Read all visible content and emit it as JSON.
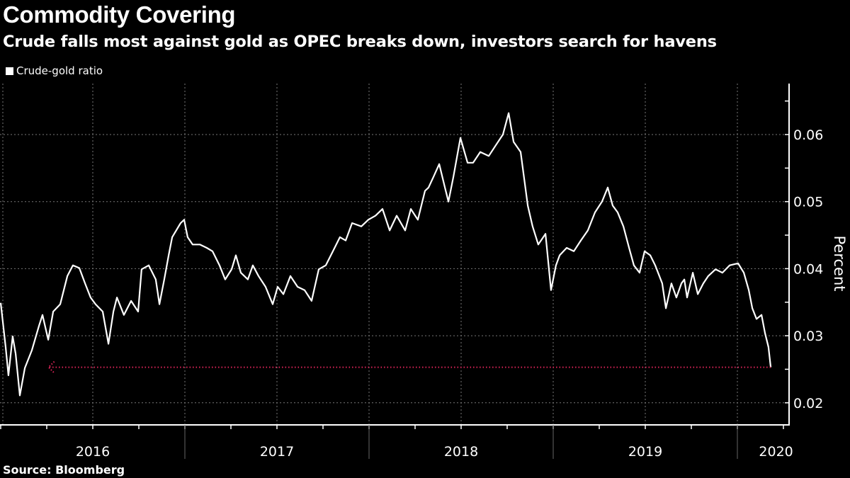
{
  "chart_data": {
    "type": "line",
    "title": "Commodity Covering",
    "subtitle": "Crude falls most against gold as OPEC breaks down, investors search for havens",
    "ylabel": "Percent",
    "xlabel": "",
    "ylim": [
      0.012,
      0.068
    ],
    "yticks": [
      "0.02",
      "0.03",
      "0.04",
      "0.05",
      "0.06"
    ],
    "ytick_values": [
      0.02,
      0.03,
      0.04,
      0.05,
      0.06
    ],
    "xlim": [
      2016.0,
      2020.43
    ],
    "xtick_labels": [
      {
        "label": "2016",
        "center": 2016.5
      },
      {
        "label": "2017",
        "center": 2017.5
      },
      {
        "label": "2018",
        "center": 2018.5
      },
      {
        "label": "2019",
        "center": 2019.5
      },
      {
        "label": "2020",
        "center": 2020.21
      }
    ],
    "grid": true,
    "legend": {
      "position": "top-left",
      "entries": [
        "Crude-gold ratio"
      ]
    },
    "series": [
      {
        "name": "Crude-gold ratio",
        "color": "#ffffff",
        "x": [
          2016.0,
          2016.027,
          2016.042,
          2016.065,
          2016.081,
          2016.104,
          2016.131,
          2016.169,
          2016.208,
          2016.227,
          2016.258,
          2016.285,
          2016.323,
          2016.362,
          2016.392,
          2016.427,
          2016.458,
          2016.488,
          2016.515,
          2016.554,
          2016.585,
          2016.612,
          2016.631,
          2016.669,
          2016.708,
          2016.746,
          2016.765,
          2016.804,
          2016.842,
          2016.862,
          2016.888,
          2016.912,
          2016.931,
          2016.977,
          2016.996,
          2017.015,
          2017.042,
          2017.081,
          2017.119,
          2017.15,
          2017.188,
          2017.219,
          2017.254,
          2017.277,
          2017.304,
          2017.342,
          2017.369,
          2017.4,
          2017.438,
          2017.477,
          2017.504,
          2017.535,
          2017.573,
          2017.612,
          2017.65,
          2017.688,
          2017.727,
          2017.765,
          2017.804,
          2017.842,
          2017.873,
          2017.908,
          2017.958,
          2017.996,
          2018.035,
          2018.073,
          2018.112,
          2018.15,
          2018.196,
          2018.227,
          2018.265,
          2018.304,
          2018.323,
          2018.35,
          2018.381,
          2018.412,
          2018.431,
          2018.458,
          2018.496,
          2018.535,
          2018.565,
          2018.604,
          2018.65,
          2018.688,
          2018.727,
          2018.758,
          2018.785,
          2018.823,
          2018.862,
          2018.888,
          2018.919,
          2018.958,
          2018.988,
          2019.015,
          2019.035,
          2019.073,
          2019.112,
          2019.15,
          2019.188,
          2019.227,
          2019.265,
          2019.296,
          2019.323,
          2019.35,
          2019.381,
          2019.412,
          2019.438,
          2019.469,
          2019.496,
          2019.527,
          2019.554,
          2019.592,
          2019.612,
          2019.642,
          2019.669,
          2019.696,
          2019.712,
          2019.727,
          2019.758,
          2019.785,
          2019.815,
          2019.842,
          2019.881,
          2019.919,
          2019.958,
          2020.004,
          2020.035,
          2020.062,
          2020.081,
          2020.104,
          2020.131,
          2020.15,
          2020.169,
          2020.181
        ],
        "y": [
          0.0349,
          0.0283,
          0.0241,
          0.0299,
          0.0273,
          0.0211,
          0.0252,
          0.0278,
          0.0315,
          0.0331,
          0.0294,
          0.0336,
          0.0347,
          0.0389,
          0.0405,
          0.0401,
          0.0378,
          0.0357,
          0.0347,
          0.0336,
          0.0288,
          0.0336,
          0.0357,
          0.0331,
          0.0352,
          0.0336,
          0.0399,
          0.0405,
          0.0384,
          0.0347,
          0.0384,
          0.042,
          0.0447,
          0.0468,
          0.0473,
          0.0447,
          0.0436,
          0.0436,
          0.0431,
          0.0426,
          0.0405,
          0.0384,
          0.0399,
          0.042,
          0.0394,
          0.0384,
          0.0405,
          0.0389,
          0.0373,
          0.0347,
          0.0373,
          0.0362,
          0.0389,
          0.0373,
          0.0368,
          0.0352,
          0.0399,
          0.0405,
          0.0426,
          0.0447,
          0.0442,
          0.0468,
          0.0463,
          0.0473,
          0.0479,
          0.0489,
          0.0457,
          0.0479,
          0.0457,
          0.0489,
          0.0473,
          0.0516,
          0.0521,
          0.0537,
          0.0556,
          0.0521,
          0.05,
          0.0537,
          0.0595,
          0.0558,
          0.0558,
          0.0574,
          0.0568,
          0.0584,
          0.06,
          0.0632,
          0.0589,
          0.0574,
          0.0494,
          0.0463,
          0.0436,
          0.0452,
          0.0368,
          0.0405,
          0.042,
          0.0431,
          0.0426,
          0.0442,
          0.0457,
          0.0484,
          0.05,
          0.0521,
          0.0494,
          0.0484,
          0.0463,
          0.0431,
          0.0405,
          0.0394,
          0.0426,
          0.042,
          0.0405,
          0.0378,
          0.0341,
          0.0378,
          0.0357,
          0.0378,
          0.0384,
          0.0357,
          0.0394,
          0.0362,
          0.0378,
          0.0389,
          0.0399,
          0.0394,
          0.0405,
          0.0408,
          0.0394,
          0.0368,
          0.0341,
          0.0325,
          0.0331,
          0.0304,
          0.0283,
          0.0253
        ]
      }
    ],
    "annotations": [
      {
        "type": "arrow",
        "style": "dotted",
        "color": "#e0245a",
        "from": [
          2020.181,
          0.0253
        ],
        "to": [
          2016.26,
          0.0253
        ]
      }
    ],
    "source": "Source: Bloomberg"
  }
}
